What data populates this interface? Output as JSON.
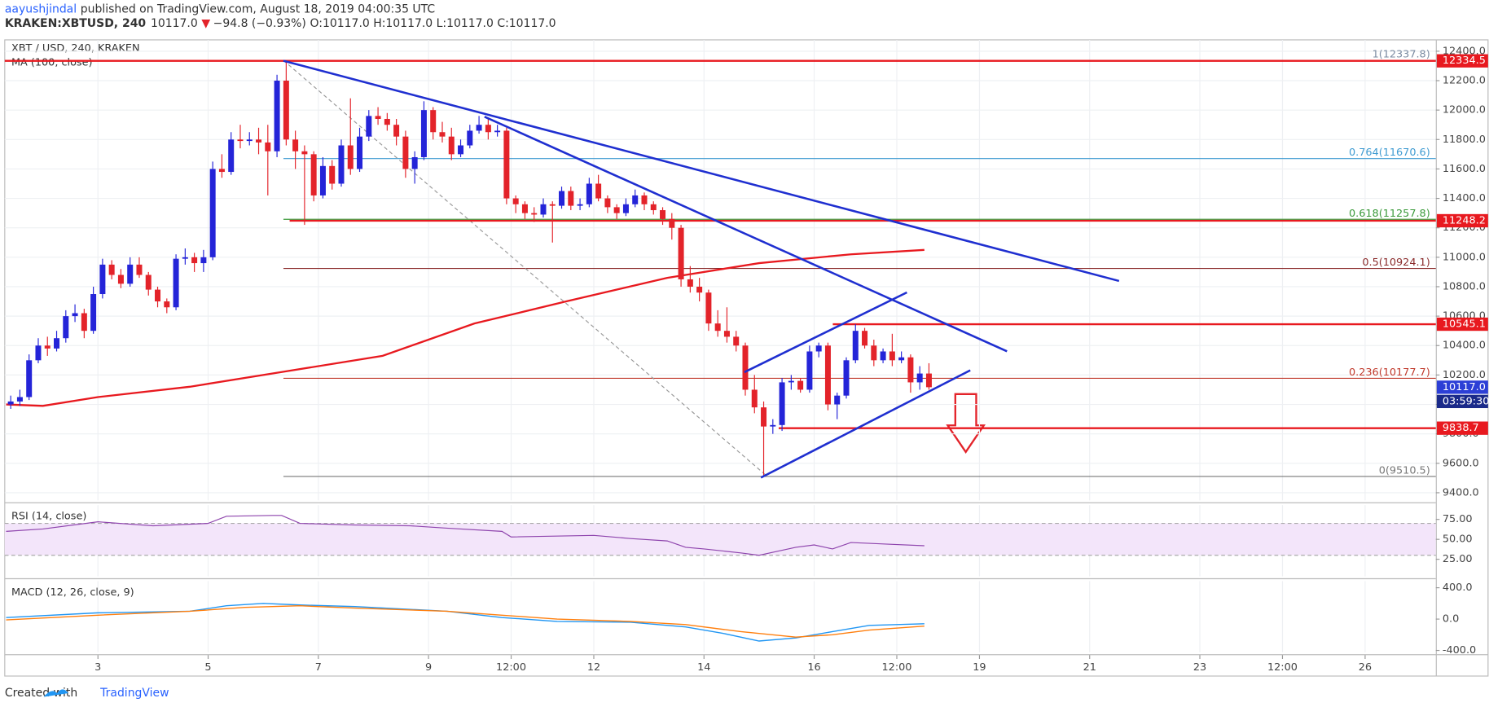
{
  "header": {
    "author": "aayushjindal",
    "published": "published on TradingView.com, August 18, 2019 04:00:35 UTC",
    "symbol": "KRAKEN:XBTUSD, 240",
    "last": "10117.0",
    "arrow": "▼",
    "change": "−94.8 (−0.93%)",
    "ohlc": "O:10117.0 H:10117.0 L:10117.0 C:10117.0"
  },
  "footer": {
    "created": "Created with",
    "brand": "TradingView"
  },
  "chart_data": {
    "type": "candlestick",
    "title": "XBT / USD, 240, KRAKEN",
    "ma_label": "MA (100, close)",
    "up_color": "#2424d8",
    "down_color": "#e3232a",
    "grid": true,
    "xlim": [
      1.85,
      157.7
    ],
    "xticks": [
      {
        "value": 12,
        "label": "3"
      },
      {
        "value": 24,
        "label": "5"
      },
      {
        "value": 36,
        "label": "7"
      },
      {
        "value": 48,
        "label": "9"
      },
      {
        "value": 57,
        "label": "12:00"
      },
      {
        "value": 66,
        "label": "12"
      },
      {
        "value": 78,
        "label": "14"
      },
      {
        "value": 90,
        "label": "16"
      },
      {
        "value": 99,
        "label": "12:00"
      },
      {
        "value": 108,
        "label": "19"
      },
      {
        "value": 120,
        "label": "21"
      },
      {
        "value": 132,
        "label": "23"
      },
      {
        "value": 141,
        "label": "12:00"
      },
      {
        "value": 150,
        "label": "26"
      }
    ],
    "ylim": [
      9348,
      12477
    ],
    "yticks": [
      {
        "value": 12400,
        "label": "12400.0"
      },
      {
        "value": 12200,
        "label": "12200.0"
      },
      {
        "value": 12000,
        "label": "12000.0"
      },
      {
        "value": 11800,
        "label": "11800.0"
      },
      {
        "value": 11600,
        "label": "11600.0"
      },
      {
        "value": 11400,
        "label": "11400.0"
      },
      {
        "value": 11200,
        "label": "11200.0"
      },
      {
        "value": 11000,
        "label": "11000.0"
      },
      {
        "value": 10800,
        "label": "10800.0"
      },
      {
        "value": 10600,
        "label": "10600.0"
      },
      {
        "value": 10400,
        "label": "10400.0"
      },
      {
        "value": 10200,
        "label": "10200.0"
      },
      {
        "value": 10000,
        "label": "10000.0"
      },
      {
        "value": 9800,
        "label": "9800.0"
      },
      {
        "value": 9600,
        "label": "9600.0"
      },
      {
        "value": 9400,
        "label": "9400.0"
      }
    ],
    "x": [
      2,
      3,
      4,
      5,
      6,
      7,
      8,
      9,
      10,
      11,
      12,
      13,
      14,
      15,
      16,
      17,
      18,
      19,
      20,
      21,
      22,
      23,
      24,
      25,
      26,
      27,
      28,
      29,
      30,
      31,
      32,
      33,
      34,
      35,
      36,
      37,
      38,
      39,
      40,
      41,
      42,
      43,
      44,
      45,
      46,
      47,
      48,
      49,
      50,
      51,
      52,
      53,
      54,
      55,
      56,
      57,
      58,
      59,
      60,
      61,
      62,
      63,
      64,
      65,
      66,
      67,
      68,
      69,
      70,
      71,
      72,
      73,
      74,
      75,
      76,
      77,
      78,
      79,
      80,
      81,
      82,
      83,
      84,
      85,
      86,
      87,
      88,
      89,
      90,
      91,
      92,
      93,
      94,
      95,
      96,
      97,
      98,
      99,
      100,
      101,
      102
    ],
    "ohlc": [
      [
        10000,
        10060,
        9970,
        10020
      ],
      [
        10020,
        10100,
        9990,
        10050
      ],
      [
        10050,
        10340,
        10030,
        10300
      ],
      [
        10300,
        10450,
        10280,
        10400
      ],
      [
        10400,
        10460,
        10330,
        10380
      ],
      [
        10380,
        10500,
        10360,
        10450
      ],
      [
        10450,
        10640,
        10420,
        10600
      ],
      [
        10600,
        10680,
        10560,
        10620
      ],
      [
        10620,
        10650,
        10450,
        10500
      ],
      [
        10500,
        10800,
        10480,
        10750
      ],
      [
        10750,
        10990,
        10720,
        10950
      ],
      [
        10950,
        10980,
        10850,
        10880
      ],
      [
        10880,
        10920,
        10790,
        10820
      ],
      [
        10820,
        11000,
        10800,
        10950
      ],
      [
        10950,
        11000,
        10860,
        10880
      ],
      [
        10880,
        10900,
        10740,
        10780
      ],
      [
        10780,
        10800,
        10660,
        10700
      ],
      [
        10700,
        10720,
        10620,
        10660
      ],
      [
        10660,
        11020,
        10640,
        10990
      ],
      [
        10990,
        11060,
        10950,
        11000
      ],
      [
        11000,
        11030,
        10900,
        10960
      ],
      [
        10960,
        11050,
        10900,
        11000
      ],
      [
        11000,
        11650,
        10980,
        11600
      ],
      [
        11600,
        11700,
        11540,
        11580
      ],
      [
        11580,
        11850,
        11560,
        11800
      ],
      [
        11800,
        11900,
        11740,
        11790
      ],
      [
        11790,
        11850,
        11760,
        11800
      ],
      [
        11800,
        11880,
        11700,
        11780
      ],
      [
        11780,
        11900,
        11420,
        11720
      ],
      [
        11720,
        12240,
        11680,
        12200
      ],
      [
        12200,
        12337.8,
        11760,
        11800
      ],
      [
        11800,
        11860,
        11600,
        11720
      ],
      [
        11720,
        11760,
        11220,
        11700
      ],
      [
        11700,
        11720,
        11380,
        11420
      ],
      [
        11420,
        11680,
        11400,
        11620
      ],
      [
        11620,
        11660,
        11460,
        11500
      ],
      [
        11500,
        11800,
        11480,
        11760
      ],
      [
        11760,
        12080,
        11560,
        11600
      ],
      [
        11600,
        11880,
        11580,
        11820
      ],
      [
        11820,
        12000,
        11790,
        11960
      ],
      [
        11960,
        12020,
        11900,
        11940
      ],
      [
        11940,
        11980,
        11860,
        11900
      ],
      [
        11900,
        11940,
        11760,
        11820
      ],
      [
        11820,
        11860,
        11540,
        11600
      ],
      [
        11600,
        11720,
        11500,
        11680
      ],
      [
        11680,
        12060,
        11660,
        12000
      ],
      [
        12000,
        12020,
        11800,
        11850
      ],
      [
        11850,
        11920,
        11780,
        11820
      ],
      [
        11820,
        11880,
        11660,
        11700
      ],
      [
        11700,
        11800,
        11680,
        11760
      ],
      [
        11760,
        11900,
        11740,
        11860
      ],
      [
        11860,
        11960,
        11840,
        11900
      ],
      [
        11900,
        11940,
        11800,
        11850
      ],
      [
        11850,
        11900,
        11820,
        11860
      ],
      [
        11860,
        11880,
        11360,
        11400
      ],
      [
        11400,
        11420,
        11300,
        11360
      ],
      [
        11360,
        11380,
        11260,
        11300
      ],
      [
        11300,
        11340,
        11240,
        11290
      ],
      [
        11290,
        11400,
        11270,
        11360
      ],
      [
        11360,
        11380,
        11100,
        11350
      ],
      [
        11350,
        11480,
        11330,
        11450
      ],
      [
        11450,
        11480,
        11320,
        11350
      ],
      [
        11350,
        11400,
        11320,
        11360
      ],
      [
        11360,
        11540,
        11340,
        11500
      ],
      [
        11500,
        11560,
        11380,
        11400
      ],
      [
        11400,
        11420,
        11300,
        11340
      ],
      [
        11340,
        11360,
        11260,
        11300
      ],
      [
        11300,
        11400,
        11280,
        11360
      ],
      [
        11360,
        11460,
        11340,
        11420
      ],
      [
        11420,
        11440,
        11320,
        11360
      ],
      [
        11360,
        11380,
        11290,
        11320
      ],
      [
        11320,
        11340,
        11220,
        11260
      ],
      [
        11260,
        11300,
        11120,
        11200
      ],
      [
        11200,
        11220,
        10800,
        10850
      ],
      [
        10850,
        10940,
        10760,
        10800
      ],
      [
        10800,
        10860,
        10700,
        10760
      ],
      [
        10760,
        10780,
        10500,
        10550
      ],
      [
        10550,
        10640,
        10460,
        10500
      ],
      [
        10500,
        10660,
        10420,
        10460
      ],
      [
        10460,
        10500,
        10360,
        10400
      ],
      [
        10400,
        10420,
        10060,
        10100
      ],
      [
        10100,
        10200,
        9940,
        9980
      ],
      [
        9980,
        10020,
        9510.5,
        9850
      ],
      [
        9850,
        9900,
        9800,
        9860
      ],
      [
        9860,
        10180,
        9820,
        10150
      ],
      [
        10150,
        10200,
        10100,
        10160
      ],
      [
        10160,
        10180,
        10080,
        10100
      ],
      [
        10100,
        10400,
        10080,
        10360
      ],
      [
        10360,
        10420,
        10320,
        10400
      ],
      [
        10400,
        10420,
        9960,
        10000
      ],
      [
        10000,
        10080,
        9900,
        10060
      ],
      [
        10060,
        10320,
        10040,
        10300
      ],
      [
        10300,
        10545.1,
        10280,
        10500
      ],
      [
        10500,
        10520,
        10380,
        10400
      ],
      [
        10400,
        10440,
        10260,
        10300
      ],
      [
        10300,
        10380,
        10280,
        10360
      ],
      [
        10360,
        10480,
        10260,
        10300
      ],
      [
        10300,
        10360,
        10280,
        10320
      ],
      [
        10320,
        10340,
        10080,
        10150
      ],
      [
        10150,
        10260,
        10100,
        10210
      ],
      [
        10210,
        10280,
        10100,
        10117
      ]
    ],
    "ma": {
      "color": "#e8191f",
      "x": [
        2,
        6,
        12,
        22,
        32,
        43,
        53,
        63,
        74,
        84,
        94,
        102
      ],
      "values": [
        10000,
        9990,
        10050,
        10120,
        10220,
        10330,
        10550,
        10700,
        10860,
        10960,
        11020,
        11050
      ]
    },
    "fib": [
      {
        "value": 12337.8,
        "label": "1(12337.8)",
        "color": "#7a8aa0"
      },
      {
        "value": 11670.6,
        "label": "0.764(11670.6)",
        "color": "#3d9ad1"
      },
      {
        "value": 11257.8,
        "label": "0.618(11257.8)",
        "color": "#3a9a3a"
      },
      {
        "value": 10924.1,
        "label": "0.5(10924.1)",
        "color": "#8a2a2a"
      },
      {
        "value": 10177.7,
        "label": "0.236(10177.7)",
        "color": "#c0392b"
      },
      {
        "value": 9510.5,
        "label": "0(9510.5)",
        "color": "#777777"
      }
    ],
    "levels": [
      {
        "value": 12334.5,
        "label": "12334.5"
      },
      {
        "value": 11248.2,
        "label": "11248.2"
      },
      {
        "value": 10545.1,
        "label": "10545.1"
      },
      {
        "value": 9838.7,
        "label": "9838.7"
      }
    ],
    "level_color": "#e8191f",
    "current": {
      "value": 10117,
      "label": "10117.0",
      "countdown": "03:59:30",
      "color": "#2c3fd6"
    },
    "trendlines": {
      "color": "#1f2fd0",
      "x": [
        [
          32.2,
          123.2
        ],
        [
          54.1,
          111
        ],
        [
          82.4,
          100.1
        ],
        [
          84.2,
          107
        ]
      ],
      "values": [
        [
          12335,
          10839
        ],
        [
          11955,
          10361
        ],
        [
          10219,
          10761
        ],
        [
          9503,
          10232
        ]
      ]
    },
    "dashed": {
      "x": [
        32.2,
        84.9
      ],
      "values": [
        12337.8,
        9510.5
      ]
    },
    "rsi": {
      "label": "RSI (14, close)",
      "color": "#8e44ad",
      "band": [
        30,
        70
      ],
      "ylim": [
        3.6,
        92.9
      ],
      "yticks": [
        {
          "value": 75,
          "label": "75.00"
        },
        {
          "value": 50,
          "label": "50.00"
        },
        {
          "value": 25,
          "label": "25.00"
        }
      ],
      "x": [
        2,
        6,
        12,
        18,
        24,
        26,
        31,
        32,
        34,
        40,
        46,
        50,
        56,
        57,
        66,
        70,
        74,
        76,
        78,
        82,
        84,
        86,
        88,
        90,
        92,
        94,
        98,
        102
      ],
      "values": [
        60,
        63,
        72,
        67,
        70,
        79,
        80,
        80,
        70,
        68,
        67,
        64,
        60,
        53,
        55,
        51,
        48,
        40,
        38,
        33,
        30,
        35,
        40,
        43,
        38,
        46,
        44,
        42
      ]
    },
    "macd": {
      "label": "MACD (12, 26, close, 9)",
      "ylim": [
        -424,
        485
      ],
      "yticks": [
        {
          "value": 400,
          "label": "400.0"
        },
        {
          "value": 0,
          "label": "0.0"
        },
        {
          "value": -400,
          "label": "-400.0"
        }
      ],
      "series": [
        {
          "color": "#2196f3",
          "x": [
            2,
            12,
            22,
            26,
            30,
            34,
            40,
            50,
            56,
            62,
            70,
            76,
            80,
            84,
            88,
            92,
            96,
            102
          ],
          "values": [
            20,
            80,
            100,
            170,
            200,
            180,
            160,
            100,
            20,
            -30,
            -40,
            -100,
            -180,
            -280,
            -240,
            -160,
            -80,
            -60
          ]
        },
        {
          "color": "#ff7f0e",
          "x": [
            2,
            12,
            22,
            28,
            34,
            40,
            50,
            56,
            62,
            70,
            76,
            82,
            88,
            92,
            96,
            102
          ],
          "values": [
            -10,
            50,
            100,
            150,
            170,
            140,
            100,
            50,
            0,
            -30,
            -70,
            -160,
            -230,
            -200,
            -140,
            -90
          ]
        }
      ]
    }
  }
}
